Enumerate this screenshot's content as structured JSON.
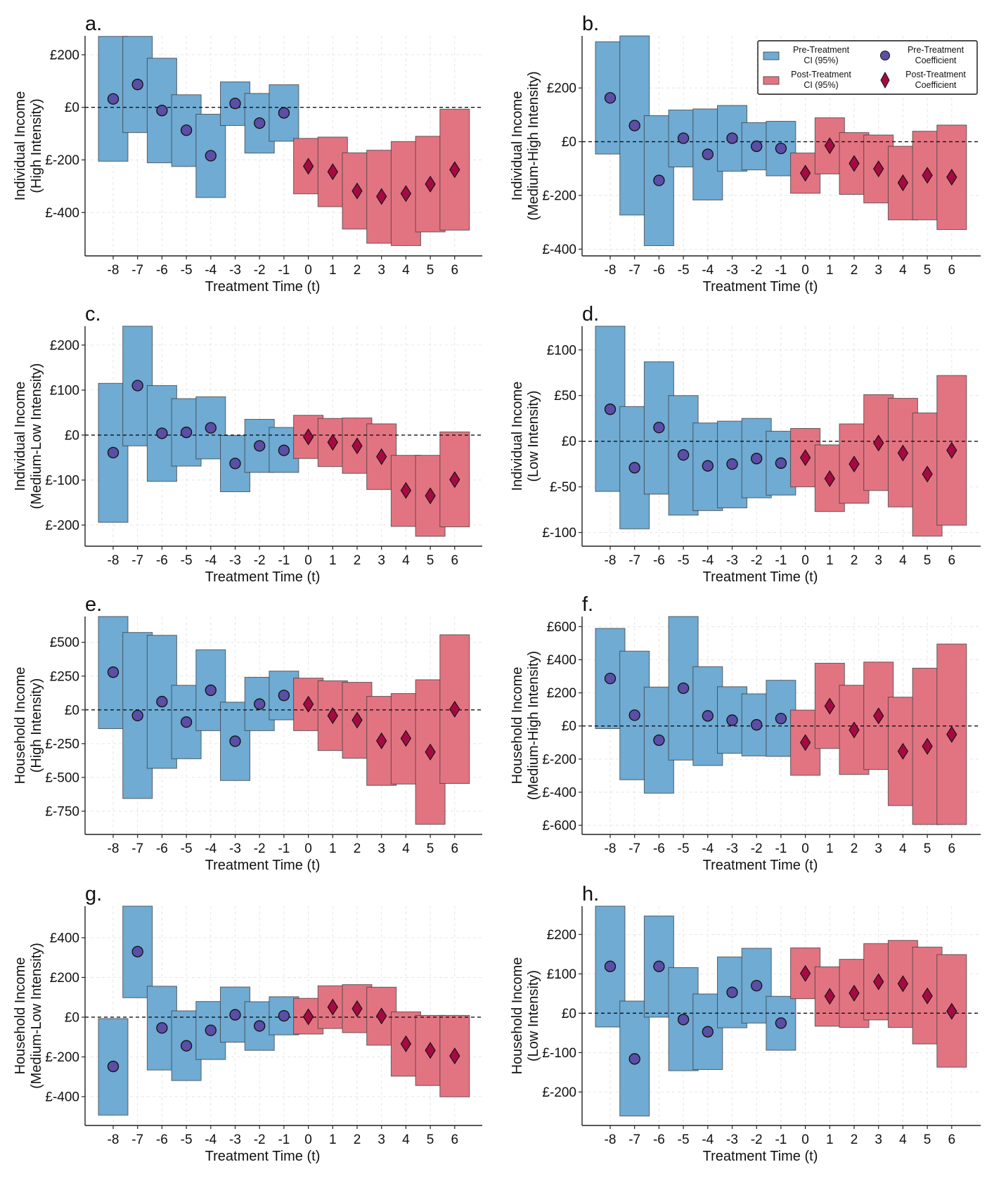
{
  "chart_data": [
    {
      "panel": "a.",
      "type": "bar",
      "title": "",
      "xlabel": "Treatment Time (t)",
      "ylabel": [
        "Individual Income",
        "(High Intensity)"
      ],
      "x": [
        -8,
        -7,
        -6,
        -5,
        -4,
        -3,
        -2,
        -1,
        0,
        1,
        2,
        3,
        4,
        5,
        6
      ],
      "coef": [
        32,
        87,
        -12,
        -87,
        -184,
        15,
        -60,
        -21,
        -224,
        -245,
        -318,
        -339,
        -328,
        -292,
        -237
      ],
      "ci_low": [
        -205,
        -96,
        -211,
        -225,
        -343,
        -69,
        -174,
        -129,
        -329,
        -378,
        -463,
        -517,
        -526,
        -474,
        -467
      ],
      "ci_high": [
        270,
        270,
        187,
        48,
        -26,
        97,
        53,
        86,
        -118,
        -113,
        -173,
        -163,
        -130,
        -110,
        -7
      ],
      "yticks": [
        200,
        0,
        -200,
        -400
      ],
      "ytick_labels": [
        "£200",
        "£0",
        "£-200",
        "£-400"
      ],
      "ylim": [
        -565,
        272
      ],
      "grid": true
    },
    {
      "panel": "b.",
      "type": "bar",
      "title": "",
      "xlabel": "Treatment Time (t)",
      "ylabel": [
        "Individual Income",
        "(Medium-High Intensity)"
      ],
      "x": [
        -8,
        -7,
        -6,
        -5,
        -4,
        -3,
        -2,
        -1,
        0,
        1,
        2,
        3,
        4,
        5,
        6
      ],
      "coef": [
        163,
        60,
        -144,
        13,
        -47,
        13,
        -17,
        -25,
        -117,
        -15,
        -81,
        -101,
        -153,
        -125,
        -132
      ],
      "ci_low": [
        -46,
        -273,
        -387,
        -94,
        -217,
        -110,
        -105,
        -127,
        -192,
        -120,
        -196,
        -228,
        -291,
        -291,
        -327
      ],
      "ci_high": [
        372,
        394,
        97,
        118,
        122,
        135,
        71,
        76,
        -42,
        89,
        34,
        25,
        -17,
        39,
        62
      ],
      "yticks": [
        200,
        0,
        -200,
        -400
      ],
      "ytick_labels": [
        "£200",
        "£0",
        "£-200",
        "£-400"
      ],
      "ylim": [
        -425,
        394
      ],
      "grid": true,
      "legend": {
        "position": "top-right",
        "entries": [
          {
            "label": [
              "Pre-Treatment",
              "CI (95%)"
            ],
            "kind": "pre-ci"
          },
          {
            "label": [
              "Pre-Treatment",
              "Coefficient"
            ],
            "kind": "pre-coef"
          },
          {
            "label": [
              "Post-Treatment",
              "CI (95%)"
            ],
            "kind": "post-ci"
          },
          {
            "label": [
              "Post-Treatment",
              "Coefficient"
            ],
            "kind": "post-coef"
          }
        ]
      }
    },
    {
      "panel": "c.",
      "type": "bar",
      "title": "",
      "xlabel": "Treatment Time (t)",
      "ylabel": [
        "Individual Income",
        "(Medium-Low Intensity)"
      ],
      "x": [
        -8,
        -7,
        -6,
        -5,
        -4,
        -3,
        -2,
        -1,
        0,
        1,
        2,
        3,
        4,
        5,
        6
      ],
      "coef": [
        -39,
        110,
        4,
        6,
        16,
        -63,
        -24,
        -34,
        -4,
        -16,
        -24,
        -48,
        -123,
        -135,
        -99
      ],
      "ci_low": [
        -194,
        -24,
        -103,
        -69,
        -53,
        -126,
        -83,
        -83,
        -52,
        -70,
        -85,
        -121,
        -203,
        -225,
        -204
      ],
      "ci_high": [
        115,
        242,
        110,
        81,
        85,
        -1,
        35,
        17,
        44,
        37,
        38,
        25,
        -45,
        -45,
        7
      ],
      "yticks": [
        200,
        100,
        0,
        -100,
        -200
      ],
      "ytick_labels": [
        "£200",
        "£100",
        "£0",
        "£-100",
        "£-200"
      ],
      "ylim": [
        -247,
        242
      ],
      "grid": true
    },
    {
      "panel": "d.",
      "type": "bar",
      "title": "",
      "xlabel": "Treatment Time  (t)",
      "ylabel": [
        "Individual Income",
        "(Low Intensity)"
      ],
      "x": [
        -8,
        -7,
        -6,
        -5,
        -4,
        -3,
        -2,
        -1,
        0,
        1,
        2,
        3,
        4,
        5,
        6
      ],
      "coef": [
        35,
        -29,
        15,
        -15,
        -27,
        -25,
        -19,
        -24,
        -18,
        -41,
        -25,
        -2,
        -13,
        -36,
        -10
      ],
      "ci_low": [
        -55,
        -96,
        -58,
        -81,
        -76,
        -73,
        -62,
        -59,
        -50,
        -77,
        -68,
        -54,
        -72,
        -104,
        -92
      ],
      "ci_high": [
        126,
        38,
        87,
        50,
        20,
        22,
        25,
        11,
        14,
        -4,
        19,
        51,
        47,
        31,
        72
      ],
      "yticks": [
        100,
        50,
        0,
        -50,
        -100
      ],
      "ytick_labels": [
        "£100",
        "£50",
        "£0",
        "£-50",
        "£-100"
      ],
      "ylim": [
        -115,
        126
      ],
      "grid": true
    },
    {
      "panel": "e.",
      "type": "bar",
      "title": "",
      "xlabel": "Treatment Time (t)",
      "ylabel": [
        "Household Income",
        "(High Intensity)"
      ],
      "x": [
        -8,
        -7,
        -6,
        -5,
        -4,
        -3,
        -2,
        -1,
        0,
        1,
        2,
        3,
        4,
        5,
        6
      ],
      "coef": [
        279,
        -42,
        61,
        -90,
        145,
        -232,
        43,
        107,
        42,
        -43,
        -76,
        -229,
        -211,
        -312,
        5
      ],
      "ci_low": [
        -139,
        -656,
        -433,
        -362,
        -154,
        -523,
        -154,
        -74,
        -154,
        -301,
        -358,
        -559,
        -549,
        -847,
        -545
      ],
      "ci_high": [
        691,
        573,
        552,
        182,
        445,
        57,
        241,
        287,
        235,
        215,
        204,
        100,
        121,
        223,
        556
      ],
      "yticks": [
        500,
        250,
        0,
        -250,
        -500,
        -750
      ],
      "ytick_labels": [
        "£500",
        "£250",
        "£0",
        "£-250",
        "£-500",
        "£-750"
      ],
      "ylim": [
        -922,
        691
      ],
      "grid": true
    },
    {
      "panel": "f.",
      "type": "bar",
      "title": "",
      "xlabel": "Treatment Time (t)",
      "ylabel": [
        "Household Income",
        "(Medium-High Intensity)"
      ],
      "x": [
        -8,
        -7,
        -6,
        -5,
        -4,
        -3,
        -2,
        -1,
        0,
        1,
        2,
        3,
        4,
        5,
        6
      ],
      "coef": [
        287,
        65,
        -86,
        228,
        61,
        35,
        7,
        45,
        -100,
        120,
        -24,
        61,
        -153,
        -123,
        -51
      ],
      "ci_low": [
        -16,
        -325,
        -406,
        -206,
        -239,
        -165,
        -181,
        -184,
        -298,
        -136,
        -293,
        -263,
        -481,
        -595,
        -595
      ],
      "ci_high": [
        589,
        452,
        235,
        661,
        358,
        237,
        194,
        276,
        96,
        379,
        246,
        386,
        174,
        349,
        495
      ],
      "yticks": [
        600,
        400,
        200,
        0,
        -200,
        -400,
        -600
      ],
      "ytick_labels": [
        "£600",
        "£400",
        "£200",
        "£0",
        "£-200",
        "£-400",
        "£-600"
      ],
      "ylim": [
        -655,
        661
      ],
      "grid": true
    },
    {
      "panel": "g.",
      "type": "bar",
      "title": "",
      "xlabel": "Treatment Time (t)",
      "ylabel": [
        "Household Income",
        "(Medium-Low Intensity)"
      ],
      "x": [
        -8,
        -7,
        -6,
        -5,
        -4,
        -3,
        -2,
        -1,
        0,
        1,
        2,
        3,
        4,
        5,
        6
      ],
      "coef": [
        -248,
        330,
        -54,
        -144,
        -66,
        12,
        -44,
        7,
        2,
        51,
        43,
        6,
        -134,
        -167,
        -195
      ],
      "ci_low": [
        -493,
        98,
        -266,
        -319,
        -213,
        -126,
        -167,
        -89,
        -85,
        -57,
        -78,
        -141,
        -297,
        -344,
        -401
      ],
      "ci_high": [
        -7,
        559,
        156,
        32,
        79,
        152,
        78,
        103,
        95,
        158,
        164,
        151,
        27,
        9,
        9
      ],
      "yticks": [
        400,
        200,
        0,
        -200,
        -400
      ],
      "ytick_labels": [
        "£400",
        "£200",
        "£0",
        "£-200",
        "£-400"
      ],
      "ylim": [
        -545,
        559
      ],
      "grid": true
    },
    {
      "panel": "h.",
      "type": "bar",
      "title": "",
      "xlabel": "Treatment Time (t)",
      "ylabel": [
        "Household Income",
        "(Low Intensity)"
      ],
      "x": [
        -8,
        -7,
        -6,
        -5,
        -4,
        -3,
        -2,
        -1,
        0,
        1,
        2,
        3,
        4,
        5,
        6
      ],
      "coef": [
        119,
        -116,
        119,
        -16,
        -47,
        53,
        70,
        -25,
        101,
        43,
        51,
        80,
        75,
        44,
        5
      ],
      "ci_low": [
        -35,
        -261,
        -10,
        -146,
        -143,
        -37,
        -25,
        -94,
        37,
        -33,
        -36,
        -17,
        -36,
        -78,
        -137
      ],
      "ci_high": [
        272,
        31,
        247,
        116,
        49,
        143,
        165,
        43,
        166,
        118,
        137,
        177,
        185,
        168,
        149
      ],
      "yticks": [
        200,
        100,
        0,
        -100,
        -200
      ],
      "ytick_labels": [
        "£200",
        "£100",
        "£0",
        "£-100",
        "£-200"
      ],
      "ylim": [
        -285,
        272
      ],
      "grid": true
    }
  ],
  "pre_treatment_threshold": 0,
  "colors": {
    "pre_ci": "#6fabd3",
    "post_ci": "#e27482",
    "pre_coef": "#5a4ea6",
    "post_coef": "#a50a42",
    "edge": "#3a3a3a",
    "zero_line": "#111111",
    "grid": "#e6e6e6"
  }
}
